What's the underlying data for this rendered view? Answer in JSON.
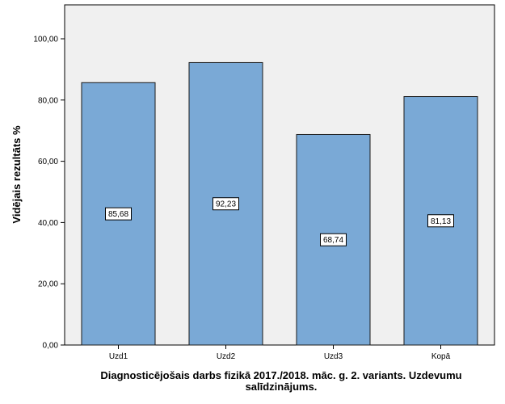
{
  "chart_data": {
    "type": "bar",
    "title": "",
    "xlabel_lines": [
      "Diagnosticējošais darbs fizikā 2017./2018. māc. g. 2. variants. Uzdevumu",
      "salīdzinājums."
    ],
    "ylabel": "Vidējais rezultāts %",
    "categories": [
      "Uzd1",
      "Uzd2",
      "Uzd3",
      "Kopā"
    ],
    "values": [
      85.68,
      92.23,
      68.74,
      81.13
    ],
    "data_labels": [
      "85,68",
      "92,23",
      "68,74",
      "81,13"
    ],
    "ylim": [
      0,
      100
    ],
    "yticks": [
      0,
      20,
      40,
      60,
      80,
      100
    ],
    "ytick_labels": [
      "0,00",
      "20,00",
      "40,00",
      "60,00",
      "80,00",
      "100,00"
    ],
    "grid": false,
    "legend": "none",
    "colors": {
      "bar_fill": "#7aa9d6",
      "bar_stroke": "#1a1a1a",
      "plot_background": "#f0f0f0",
      "axis": "#000000"
    }
  }
}
